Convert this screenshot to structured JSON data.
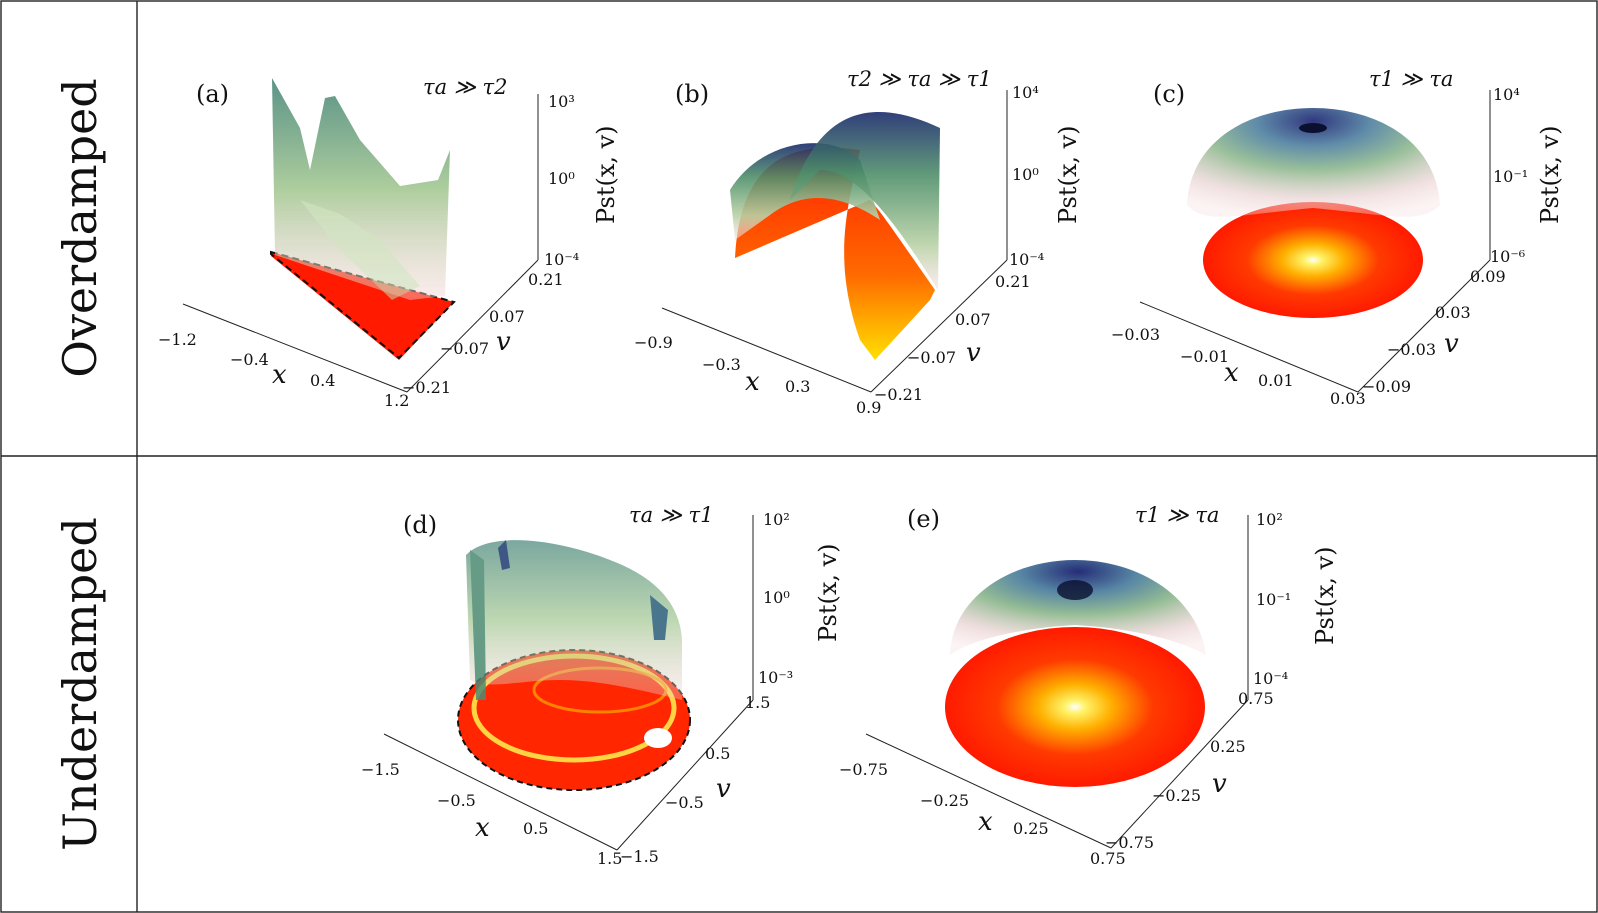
{
  "figure": {
    "row_labels": [
      "Overdamped",
      "Underdamped"
    ],
    "panels": [
      {
        "id": "a",
        "label": "(a)",
        "regime": "τa ≫ τ2",
        "x_ticks": [
          "−1.2",
          "−0.4",
          "0.4",
          "1.2"
        ],
        "v_ticks": [
          "−0.21",
          "−0.07",
          "0.07",
          "0.21"
        ],
        "z_ticks": [
          "10³",
          "10⁰",
          "10⁻⁴"
        ],
        "x_label": "x",
        "v_label": "v",
        "z_label": "Pst(x, v)"
      },
      {
        "id": "b",
        "label": "(b)",
        "regime": "τ2 ≫ τa ≫ τ1",
        "x_ticks": [
          "−0.9",
          "−0.3",
          "0.3",
          "0.9"
        ],
        "v_ticks": [
          "−0.21",
          "−0.07",
          "0.07",
          "0.21"
        ],
        "z_ticks": [
          "10⁴",
          "10⁰",
          "10⁻⁴"
        ],
        "x_label": "x",
        "v_label": "v",
        "z_label": "Pst(x, v)"
      },
      {
        "id": "c",
        "label": "(c)",
        "regime": "τ1 ≫ τa",
        "x_ticks": [
          "−0.03",
          "−0.01",
          "0.01",
          "0.03"
        ],
        "v_ticks": [
          "−0.09",
          "−0.03",
          "0.03",
          "0.09"
        ],
        "z_ticks": [
          "10⁴",
          "10⁻¹",
          "10⁻⁶"
        ],
        "x_label": "x",
        "v_label": "v",
        "z_label": "Pst(x, v)"
      },
      {
        "id": "d",
        "label": "(d)",
        "regime": "τa ≫ τ1",
        "x_ticks": [
          "−1.5",
          "−0.5",
          "0.5",
          "1.5"
        ],
        "v_ticks": [
          "−1.5",
          "−0.5",
          "0.5",
          "1.5"
        ],
        "z_ticks": [
          "10²",
          "10⁰",
          "10⁻³"
        ],
        "x_label": "x",
        "v_label": "v",
        "z_label": "Pst(x, v)"
      },
      {
        "id": "e",
        "label": "(e)",
        "regime": "τ1 ≫ τa",
        "x_ticks": [
          "−0.75",
          "−0.25",
          "0.25",
          "0.75"
        ],
        "v_ticks": [
          "−0.75",
          "−0.25",
          "0.25",
          "0.75"
        ],
        "z_ticks": [
          "10²",
          "10⁻¹",
          "10⁻⁴"
        ],
        "x_label": "x",
        "v_label": "v",
        "z_label": "Pst(x, v)"
      }
    ]
  }
}
